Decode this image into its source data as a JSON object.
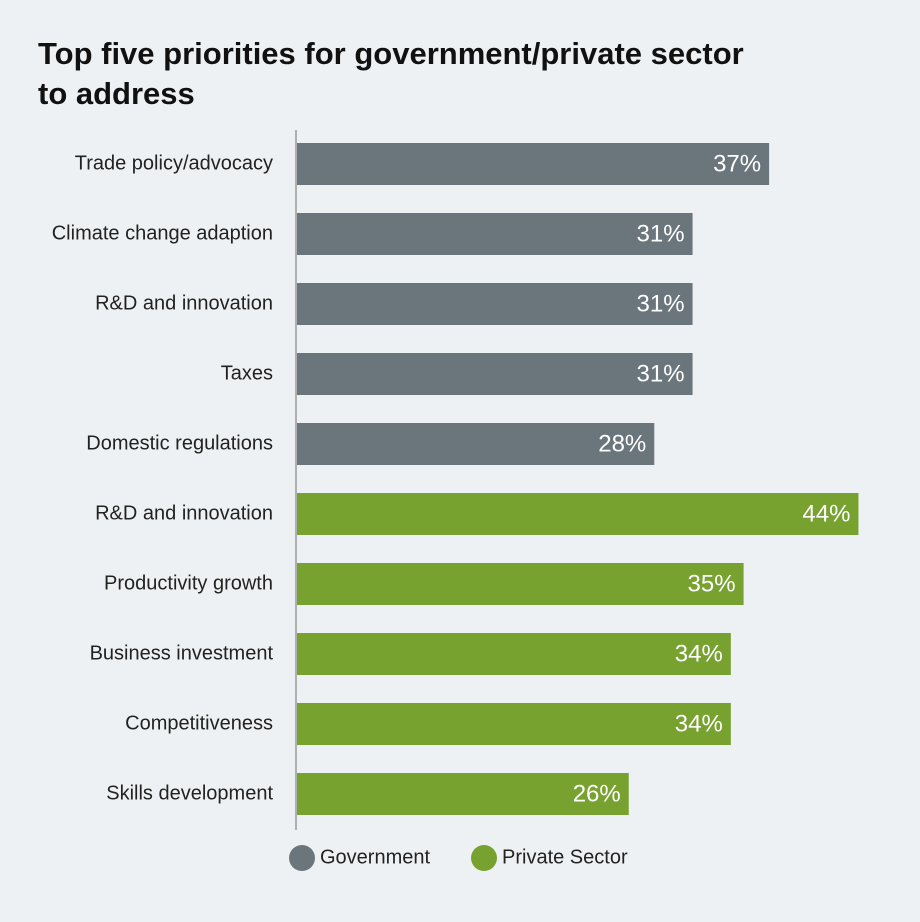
{
  "chart_data": {
    "type": "bar",
    "orientation": "horizontal",
    "title": "Top five priorities for government/private sector to address",
    "categories": [
      "Trade policy/advocacy",
      "Climate change adaption",
      "R&D and innovation",
      "Taxes",
      "Domestic regulations",
      "R&D and innovation",
      "Productivity growth",
      "Business investment",
      "Competitiveness",
      "Skills development"
    ],
    "series": [
      {
        "name": "Government",
        "color": "#6b767c",
        "values": [
          37,
          31,
          31,
          31,
          28,
          null,
          null,
          null,
          null,
          null
        ],
        "value_labels": [
          "37%",
          "31%",
          "31%",
          "31%",
          "28%",
          null,
          null,
          null,
          null,
          null
        ]
      },
      {
        "name": "Private Sector",
        "color": "#77a22f",
        "values": [
          null,
          null,
          null,
          null,
          null,
          44,
          35,
          34,
          34,
          26
        ],
        "value_labels": [
          null,
          null,
          null,
          null,
          null,
          "44%",
          "35%",
          "34%",
          "34%",
          "26%"
        ]
      }
    ],
    "legend": "bottom"
  }
}
